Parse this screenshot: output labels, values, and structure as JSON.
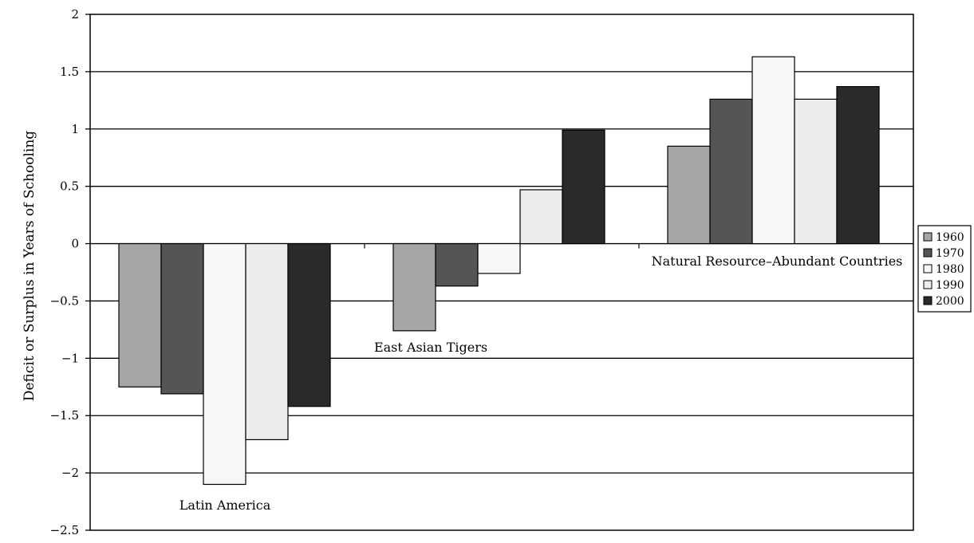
{
  "chart_data": {
    "type": "bar",
    "title": "",
    "xlabel": "",
    "ylabel": "Deficit or Surplus in Years of Schooling",
    "ylim": [
      -2.5,
      2
    ],
    "yticks": [
      2,
      1.5,
      1,
      0.5,
      0,
      -0.5,
      -1,
      -1.5,
      -2,
      -2.5
    ],
    "ytick_labels": [
      "2",
      "1.5",
      "1",
      "0.5",
      "0",
      "−0.5",
      "−1",
      "−1.5",
      "−2",
      "−2.5"
    ],
    "grid": true,
    "legend_position": "right",
    "categories": [
      "Latin America",
      "East Asian Tigers",
      "Natural Resource–Abundant Countries"
    ],
    "series": [
      {
        "name": "1960",
        "color": "#a6a6a6",
        "values": [
          -1.25,
          -0.76,
          0.85
        ]
      },
      {
        "name": "1970",
        "color": "#555555",
        "values": [
          -1.31,
          -0.37,
          1.26
        ]
      },
      {
        "name": "1980",
        "color": "#f7f7f7",
        "values": [
          -2.1,
          -0.26,
          1.63
        ]
      },
      {
        "name": "1990",
        "color": "#ececec",
        "values": [
          -1.71,
          0.47,
          1.26
        ]
      },
      {
        "name": "2000",
        "color": "#2a2a2a",
        "values": [
          -1.42,
          0.99,
          1.37
        ]
      }
    ]
  }
}
